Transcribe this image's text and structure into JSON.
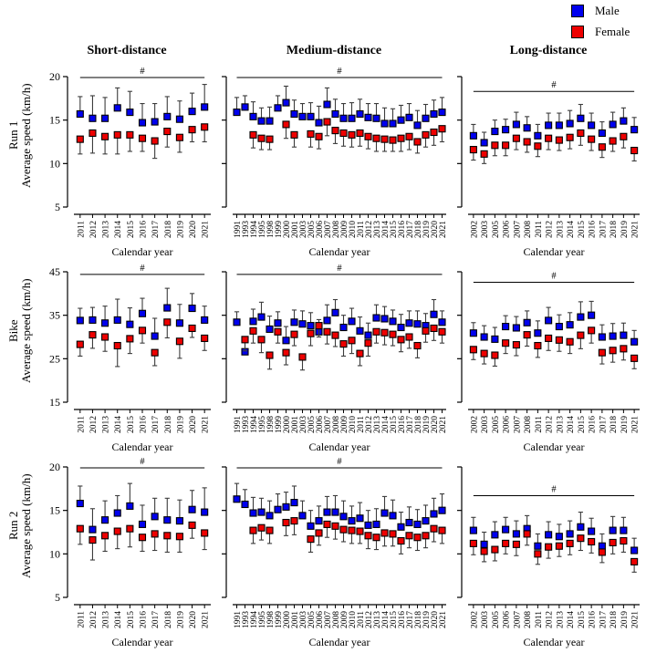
{
  "chart_data": {
    "type": "scatter",
    "xlabel": "Calendar year",
    "sig_symbol": "#",
    "legend": [
      {
        "label": "Male",
        "color": "#0000EE"
      },
      {
        "label": "Female",
        "color": "#EE0000"
      }
    ],
    "marker": {
      "size": 7,
      "border_color": "#000000",
      "errorbar_color": "#3c3c3c"
    },
    "columns": [
      {
        "title": "Short-distance",
        "years": [
          "2011",
          "2012",
          "2013",
          "2014",
          "2015",
          "2016",
          "2017",
          "2018",
          "2019",
          "2020",
          "2021"
        ]
      },
      {
        "title": "Medium-distance",
        "years": [
          "1991",
          "1993",
          "1994",
          "1995",
          "1998",
          "1999",
          "2000",
          "2001",
          "2003",
          "2005",
          "2006",
          "2007",
          "2008",
          "2009",
          "2010",
          "2011",
          "2012",
          "2013",
          "2014",
          "2015",
          "2016",
          "2017",
          "2018",
          "2019",
          "2020",
          "2021"
        ]
      },
      {
        "title": "Long-distance",
        "years": [
          "2002",
          "2003",
          "2005",
          "2006",
          "2007",
          "2008",
          "2011",
          "2012",
          "2013",
          "2014",
          "2015",
          "2016",
          "2017",
          "2018",
          "2019",
          "2021"
        ]
      }
    ],
    "rows": [
      {
        "label": "Run 1",
        "ylabel": "Average speed (km/h)",
        "ylim": [
          5,
          20
        ],
        "yticks": [
          5,
          10,
          15,
          20
        ]
      },
      {
        "label": "Bike",
        "ylabel": "Average speed (km/h)",
        "ylim": [
          15,
          45
        ],
        "yticks": [
          15,
          25,
          35,
          45
        ]
      },
      {
        "label": "Run 2",
        "ylabel": "Average speed (km/h)",
        "ylim": [
          5,
          20
        ],
        "yticks": [
          5,
          10,
          15,
          20
        ]
      }
    ],
    "panels": [
      {
        "row": 0,
        "col": 0,
        "sig_y": 19.9,
        "male": {
          "v": [
            15.7,
            15.2,
            15.2,
            16.4,
            15.9,
            14.7,
            14.8,
            15.4,
            15.1,
            16.0,
            16.5
          ],
          "e": [
            2.0,
            2.6,
            2.4,
            2.3,
            2.4,
            2.2,
            2.1,
            2.3,
            2.1,
            2.1,
            2.6
          ]
        },
        "female": {
          "v": [
            12.8,
            13.5,
            13.1,
            13.3,
            13.3,
            12.9,
            12.6,
            13.7,
            13.0,
            13.9,
            14.2
          ],
          "e": [
            1.7,
            2.3,
            2.0,
            2.2,
            1.9,
            1.5,
            2.0,
            1.8,
            1.7,
            1.4,
            1.7
          ]
        }
      },
      {
        "row": 0,
        "col": 1,
        "sig_y": 19.9,
        "male": {
          "v": [
            15.9,
            16.5,
            15.4,
            14.9,
            14.9,
            16.4,
            17.0,
            15.7,
            15.4,
            15.4,
            14.7,
            16.8,
            15.7,
            15.2,
            15.2,
            15.7,
            15.3,
            15.2,
            14.6,
            14.6,
            15.0,
            15.3,
            14.4,
            15.2,
            15.7,
            15.9
          ],
          "e": [
            1.7,
            1.3,
            1.7,
            1.5,
            1.6,
            1.4,
            1.9,
            1.6,
            1.5,
            1.6,
            1.9,
            1.9,
            1.7,
            1.7,
            1.8,
            1.7,
            1.6,
            1.7,
            1.8,
            1.7,
            1.7,
            1.6,
            1.7,
            1.6,
            1.6,
            1.7
          ]
        },
        "female": {
          "v": [
            null,
            null,
            13.3,
            12.9,
            12.8,
            null,
            14.5,
            13.3,
            null,
            13.4,
            13.1,
            14.8,
            13.8,
            13.5,
            13.3,
            13.5,
            13.1,
            12.9,
            12.8,
            12.7,
            12.9,
            13.1,
            12.5,
            13.3,
            13.6,
            14.0
          ],
          "e": [
            null,
            null,
            1.5,
            1.3,
            1.2,
            null,
            1.6,
            1.4,
            null,
            1.5,
            1.4,
            1.6,
            1.5,
            1.5,
            1.4,
            1.5,
            1.4,
            1.5,
            1.4,
            1.3,
            1.5,
            1.5,
            1.3,
            1.4,
            1.5,
            1.5
          ]
        }
      },
      {
        "row": 0,
        "col": 2,
        "sig_y": 18.3,
        "male": {
          "v": [
            13.2,
            12.4,
            13.7,
            13.9,
            14.5,
            14.1,
            13.2,
            14.4,
            14.4,
            14.6,
            15.2,
            14.4,
            13.5,
            14.5,
            14.9,
            13.9
          ],
          "e": [
            1.3,
            1.2,
            1.3,
            1.2,
            1.4,
            1.3,
            1.3,
            1.4,
            1.4,
            1.5,
            1.6,
            1.4,
            1.3,
            1.4,
            1.5,
            1.4
          ]
        },
        "female": {
          "v": [
            11.6,
            11.1,
            12.1,
            12.1,
            12.9,
            12.5,
            12.0,
            12.9,
            12.7,
            13.0,
            13.5,
            12.8,
            11.9,
            12.6,
            13.1,
            11.5
          ],
          "e": [
            1.2,
            1.1,
            1.2,
            1.2,
            1.3,
            1.2,
            1.2,
            1.3,
            1.2,
            1.3,
            1.4,
            1.3,
            1.2,
            1.2,
            1.3,
            1.2
          ]
        }
      },
      {
        "row": 1,
        "col": 0,
        "sig_y": 44.4,
        "male": {
          "v": [
            33.8,
            33.9,
            33.2,
            33.9,
            32.9,
            35.4,
            30.2,
            36.7,
            33.2,
            36.6,
            33.9
          ],
          "e": [
            2.8,
            2.9,
            3.9,
            4.8,
            3.8,
            3.5,
            4.1,
            4.5,
            4.3,
            3.4,
            3.2
          ]
        },
        "female": {
          "v": [
            28.3,
            30.5,
            30.0,
            28.0,
            29.6,
            31.5,
            26.4,
            33.4,
            29.0,
            32.0,
            29.7
          ],
          "e": [
            2.7,
            3.1,
            3.3,
            4.8,
            3.4,
            2.9,
            3.0,
            3.6,
            3.9,
            2.1,
            2.8
          ]
        }
      },
      {
        "row": 1,
        "col": 1,
        "sig_y": 44.4,
        "male": {
          "v": [
            33.4,
            26.6,
            33.6,
            34.6,
            31.8,
            33.2,
            29.2,
            33.4,
            33.0,
            32.6,
            31.2,
            33.8,
            35.6,
            32.2,
            33.6,
            31.4,
            30.4,
            34.4,
            34.2,
            33.6,
            32.2,
            33.2,
            33.0,
            32.6,
            35.2,
            33.4
          ],
          "e": [
            2.4,
            3.2,
            2.8,
            3.4,
            3.0,
            2.6,
            3.2,
            2.8,
            3.0,
            3.0,
            2.8,
            3.6,
            3.0,
            2.8,
            3.0,
            3.2,
            2.8,
            3.0,
            2.8,
            2.6,
            3.0,
            2.8,
            3.0,
            2.8,
            3.4,
            2.6
          ]
        },
        "female": {
          "v": [
            null,
            29.4,
            31.4,
            29.4,
            25.8,
            31.2,
            26.4,
            30.6,
            25.4,
            30.8,
            32.6,
            31.2,
            30.4,
            28.4,
            29.2,
            26.2,
            28.6,
            31.2,
            31.0,
            30.6,
            29.4,
            30.0,
            28.0,
            31.4,
            32.0,
            31.2
          ],
          "e": [
            null,
            2.6,
            2.8,
            3.0,
            3.2,
            2.6,
            2.8,
            2.6,
            3.0,
            2.8,
            2.6,
            2.8,
            2.6,
            2.8,
            3.0,
            2.8,
            3.0,
            2.6,
            2.8,
            2.6,
            2.8,
            2.6,
            2.8,
            2.6,
            2.8,
            2.6
          ]
        }
      },
      {
        "row": 1,
        "col": 2,
        "sig_y": 42.6,
        "male": {
          "v": [
            30.9,
            30.0,
            29.5,
            32.4,
            32.1,
            33.3,
            30.9,
            33.8,
            32.4,
            32.8,
            34.6,
            35.0,
            30.0,
            30.2,
            30.4,
            28.9
          ],
          "e": [
            2.4,
            2.6,
            2.7,
            2.5,
            2.6,
            2.7,
            2.8,
            3.0,
            2.7,
            2.8,
            3.5,
            3.2,
            2.8,
            2.9,
            2.8,
            2.6
          ]
        },
        "female": {
          "v": [
            27.1,
            26.2,
            25.8,
            28.6,
            28.2,
            30.5,
            28.0,
            29.7,
            29.3,
            28.9,
            30.4,
            31.5,
            26.4,
            26.9,
            27.3,
            25.1
          ],
          "e": [
            2.3,
            2.4,
            2.5,
            2.4,
            2.5,
            2.6,
            2.7,
            2.8,
            2.6,
            2.7,
            3.1,
            2.9,
            2.6,
            2.7,
            2.6,
            2.4
          ]
        }
      },
      {
        "row": 2,
        "col": 0,
        "sig_y": 19.9,
        "male": {
          "v": [
            15.8,
            12.8,
            13.9,
            14.7,
            15.5,
            13.4,
            14.3,
            13.9,
            13.8,
            15.1,
            14.8
          ],
          "e": [
            2.0,
            2.4,
            2.2,
            2.0,
            2.6,
            2.2,
            2.1,
            2.5,
            2.4,
            2.2,
            2.8
          ]
        },
        "female": {
          "v": [
            12.9,
            11.6,
            12.1,
            12.6,
            12.9,
            11.9,
            12.3,
            12.1,
            12.0,
            13.3,
            12.4
          ],
          "e": [
            1.8,
            2.3,
            1.8,
            2.0,
            2.1,
            1.6,
            1.9,
            1.9,
            1.8,
            1.5,
            1.9
          ]
        }
      },
      {
        "row": 2,
        "col": 1,
        "sig_y": 19.9,
        "male": {
          "v": [
            16.3,
            15.7,
            14.7,
            14.8,
            14.4,
            15.1,
            15.4,
            15.9,
            14.4,
            13.2,
            13.8,
            14.8,
            14.8,
            14.3,
            13.8,
            14.1,
            13.3,
            13.4,
            14.7,
            14.4,
            13.1,
            13.6,
            13.4,
            13.8,
            14.6,
            15.0
          ],
          "e": [
            1.8,
            1.7,
            1.8,
            1.6,
            1.7,
            1.8,
            1.7,
            1.9,
            1.7,
            1.8,
            1.7,
            1.8,
            1.9,
            1.8,
            1.7,
            1.8,
            1.7,
            1.8,
            1.9,
            1.8,
            1.7,
            1.8,
            1.7,
            1.8,
            1.8,
            1.9
          ]
        },
        "female": {
          "v": [
            null,
            null,
            12.7,
            13.0,
            12.7,
            null,
            13.6,
            13.8,
            null,
            11.7,
            12.4,
            13.4,
            13.2,
            12.8,
            12.7,
            12.6,
            12.1,
            11.9,
            12.4,
            12.3,
            11.5,
            12.1,
            11.9,
            12.1,
            12.9,
            12.7
          ],
          "e": [
            null,
            null,
            1.5,
            1.4,
            1.5,
            null,
            1.5,
            1.6,
            null,
            1.5,
            1.4,
            1.5,
            1.5,
            1.4,
            1.5,
            1.4,
            1.5,
            1.4,
            1.5,
            1.4,
            1.5,
            1.4,
            1.5,
            1.4,
            1.5,
            1.5
          ]
        }
      },
      {
        "row": 2,
        "col": 2,
        "sig_y": 16.7,
        "male": {
          "v": [
            12.7,
            11.1,
            12.2,
            12.8,
            12.3,
            12.9,
            10.9,
            12.2,
            12.0,
            12.3,
            13.1,
            12.6,
            10.9,
            12.7,
            12.7,
            10.4
          ],
          "e": [
            1.5,
            1.4,
            1.5,
            1.4,
            1.5,
            1.5,
            1.4,
            1.5,
            1.4,
            1.5,
            1.7,
            1.5,
            1.4,
            1.6,
            1.5,
            1.4
          ]
        },
        "female": {
          "v": [
            11.2,
            10.3,
            10.5,
            11.2,
            11.1,
            12.3,
            10.0,
            10.8,
            10.9,
            11.2,
            11.8,
            11.4,
            10.2,
            11.3,
            11.5,
            9.1
          ],
          "e": [
            1.3,
            1.2,
            1.3,
            1.2,
            1.3,
            1.3,
            1.2,
            1.3,
            1.2,
            1.3,
            1.4,
            1.3,
            1.2,
            1.3,
            1.3,
            1.2
          ]
        }
      }
    ]
  }
}
